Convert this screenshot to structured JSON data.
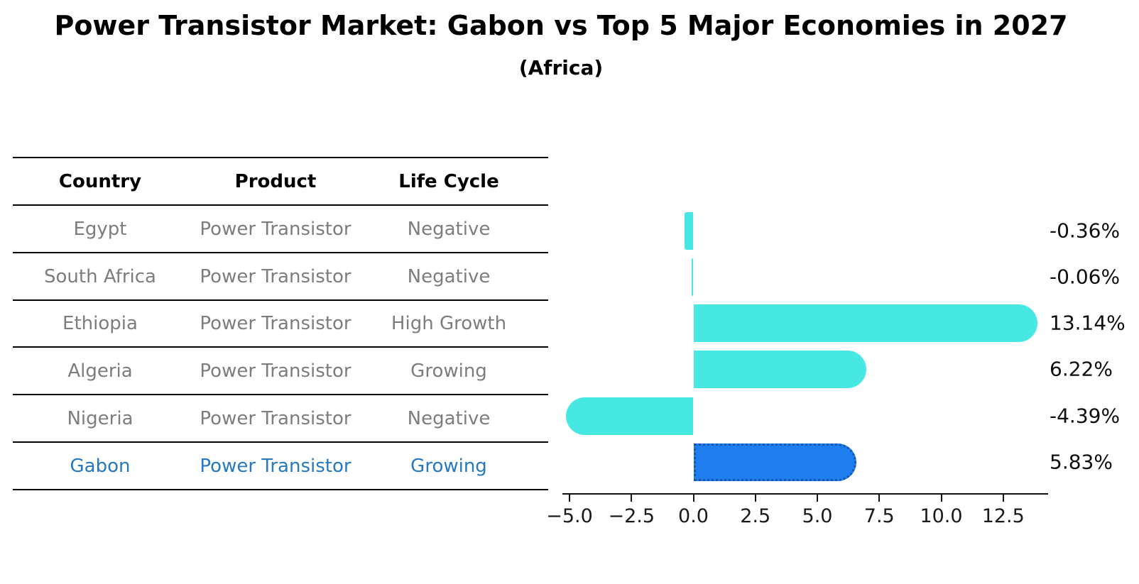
{
  "title": "Power Transistor Market: Gabon vs Top 5 Major Economies in 2027",
  "subtitle": "(Africa)",
  "table": {
    "headers": [
      "Country",
      "Product",
      "Life Cycle"
    ],
    "rows": [
      {
        "country": "Egypt",
        "product": "Power Transistor",
        "life_cycle": "Negative",
        "highlight": false
      },
      {
        "country": "South Africa",
        "product": "Power Transistor",
        "life_cycle": "Negative",
        "highlight": false
      },
      {
        "country": "Ethiopia",
        "product": "Power Transistor",
        "life_cycle": "High Growth",
        "highlight": false
      },
      {
        "country": "Algeria",
        "product": "Power Transistor",
        "life_cycle": "Growing",
        "highlight": false
      },
      {
        "country": "Nigeria",
        "product": "Power Transistor",
        "life_cycle": "Negative",
        "highlight": false
      },
      {
        "country": "Gabon",
        "product": "Power Transistor",
        "life_cycle": "Growing",
        "highlight": true
      }
    ]
  },
  "chart_data": {
    "type": "bar",
    "orientation": "horizontal",
    "title": "Power Transistor Market: Gabon vs Top 5 Major Economies in 2027",
    "subtitle": "(Africa)",
    "categories": [
      "Egypt",
      "South Africa",
      "Ethiopia",
      "Algeria",
      "Nigeria",
      "Gabon"
    ],
    "values": [
      -0.36,
      -0.06,
      13.14,
      6.22,
      -4.39,
      5.83
    ],
    "value_labels": [
      "-0.36%",
      "-0.06%",
      "13.14%",
      "6.22%",
      "-4.39%",
      "5.83%"
    ],
    "highlight_index": 5,
    "x_ticks": [
      -5.0,
      -2.5,
      0.0,
      2.5,
      5.0,
      7.5,
      10.0,
      12.5
    ],
    "x_tick_labels": [
      "−5.0",
      "−2.5",
      "0.0",
      "2.5",
      "5.0",
      "7.5",
      "10.0",
      "12.5"
    ],
    "xlim": [
      -5.3,
      14.0
    ],
    "grid": false,
    "legend": false,
    "bar_color": "#47e8e3",
    "highlight_bar_color": "#1e7ef0",
    "highlight_border_color": "#1456ad",
    "text_gray": "#7d7d7d",
    "highlight_text_color": "#2679c0"
  }
}
